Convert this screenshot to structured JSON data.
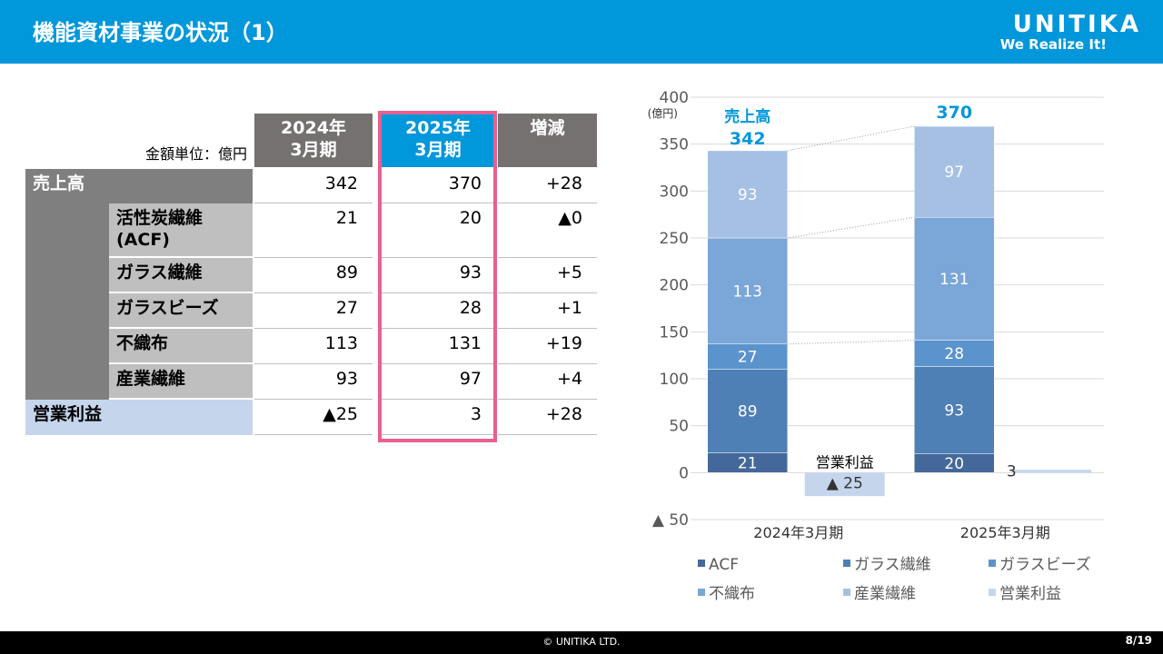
{
  "header": {
    "title": "機能資材事業の状況（1）",
    "logo": "UNITIKA",
    "slogan": "We Realize It!"
  },
  "table": {
    "unit": "金額単位：億円",
    "columns": [
      "2024年\n3月期",
      "2025年\n3月期",
      "増減"
    ],
    "rows": [
      {
        "label": "売上高",
        "values": [
          "342",
          "370",
          "+28"
        ]
      },
      {
        "label": "活性炭繊維\n(ACF)",
        "values": [
          "21",
          "20",
          "▲0"
        ]
      },
      {
        "label": "ガラス繊維",
        "values": [
          "89",
          "93",
          "+5"
        ]
      },
      {
        "label": "ガラスビーズ",
        "values": [
          "27",
          "28",
          "+1"
        ]
      },
      {
        "label": "不織布",
        "values": [
          "113",
          "131",
          "+19"
        ]
      },
      {
        "label": "産業繊維",
        "values": [
          "93",
          "97",
          "+4"
        ]
      },
      {
        "label": "営業利益",
        "values": [
          "▲25",
          "3",
          "+28"
        ]
      }
    ]
  },
  "chart_data": {
    "type": "stacked_bar",
    "y_unit": "(億円)",
    "categories": [
      "2024年3月期",
      "2025年3月期"
    ],
    "ylim": [
      -50,
      400
    ],
    "yticks": [
      {
        "value": -50,
        "label": "▲ 50"
      },
      0,
      50,
      100,
      150,
      200,
      250,
      300,
      350,
      400
    ],
    "grid": true,
    "series": [
      {
        "name": "ACF",
        "color": "#44689a",
        "values": [
          21,
          20
        ]
      },
      {
        "name": "ガラス繊維",
        "color": "#4e7fb5",
        "values": [
          89,
          93
        ]
      },
      {
        "name": "ガラスビーズ",
        "color": "#5b93cc",
        "values": [
          27,
          28
        ]
      },
      {
        "name": "不織布",
        "color": "#7aa6d8",
        "values": [
          113,
          131
        ]
      },
      {
        "name": "産業繊維",
        "color": "#a5c0e3",
        "values": [
          93,
          97
        ]
      }
    ],
    "side_series": {
      "name": "営業利益",
      "color": "#c5d6ec",
      "values": [
        -25,
        3
      ],
      "value_labels": [
        "▲ 25",
        "3"
      ],
      "annotation": "営業利益"
    },
    "totals": {
      "label": "売上高",
      "values": [
        342,
        370
      ]
    }
  },
  "footer": {
    "copyright": "© UNITIKA LTD.",
    "page": "8/19"
  }
}
